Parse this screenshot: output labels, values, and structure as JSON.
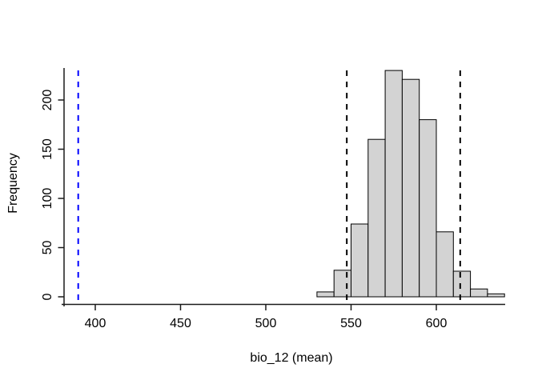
{
  "chart_data": {
    "type": "bar",
    "subtype": "histogram",
    "title": "",
    "xlabel": "bio_12 (mean)",
    "ylabel": "Frequency",
    "bin_edges": [
      530,
      540,
      550,
      560,
      570,
      580,
      590,
      600,
      610,
      620,
      630,
      640
    ],
    "counts": [
      5,
      27,
      74,
      160,
      230,
      221,
      180,
      66,
      26,
      8,
      3
    ],
    "x_ticks": [
      400,
      450,
      500,
      550,
      600
    ],
    "y_ticks": [
      0,
      50,
      100,
      150,
      200
    ],
    "xlim": [
      380,
      650
    ],
    "ylim": [
      0,
      230
    ],
    "grid": false,
    "legend_position": "none",
    "bar_fill": "#d3d3d3",
    "bar_stroke": "#000000",
    "axis_color": "#1a1a1a",
    "vlines": [
      {
        "name": "blue-dashed-line",
        "value": 390,
        "color": "#0000ff",
        "style": "dashed"
      },
      {
        "name": "black-dashed-line-left",
        "value": 547.5,
        "color": "#000000",
        "style": "dashed"
      },
      {
        "name": "black-dashed-line-right",
        "value": 614,
        "color": "#000000",
        "style": "dashed"
      }
    ]
  }
}
